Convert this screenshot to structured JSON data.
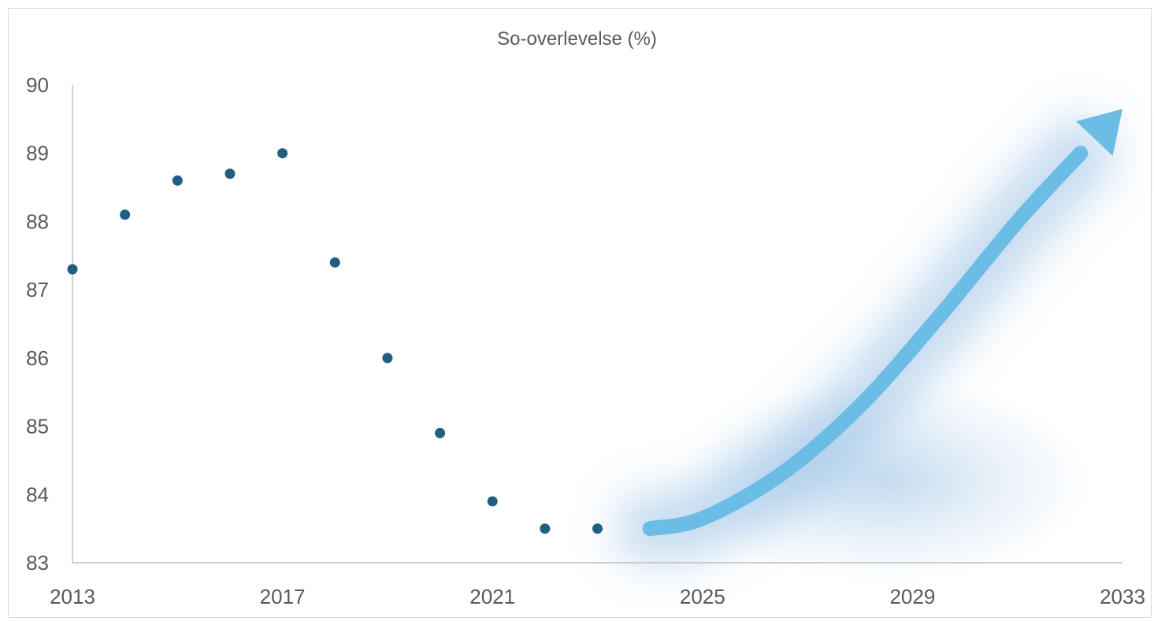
{
  "chart_data": {
    "type": "scatter",
    "title": "So-overlevelse (%)",
    "xlabel": "",
    "ylabel": "",
    "xlim": [
      2013,
      2033
    ],
    "ylim": [
      83,
      90
    ],
    "x_ticks": [
      "2013",
      "2017",
      "2021",
      "2025",
      "2029",
      "2033"
    ],
    "y_ticks": [
      "83",
      "84",
      "85",
      "86",
      "87",
      "88",
      "89",
      "90"
    ],
    "grid": false,
    "legend": "none",
    "series": [
      {
        "color": "#1f5f82",
        "points": [
          {
            "x": 2013,
            "y": 87.3
          },
          {
            "x": 2014,
            "y": 88.1
          },
          {
            "x": 2015,
            "y": 88.6
          },
          {
            "x": 2016,
            "y": 88.7
          },
          {
            "x": 2017,
            "y": 89.0
          },
          {
            "x": 2018,
            "y": 87.4
          },
          {
            "x": 2019,
            "y": 86.0
          },
          {
            "x": 2020,
            "y": 84.9
          },
          {
            "x": 2021,
            "y": 83.9
          },
          {
            "x": 2022,
            "y": 83.5
          },
          {
            "x": 2023,
            "y": 83.5
          }
        ]
      }
    ],
    "trend_arrow": {
      "color": "#6cbde6",
      "glow_color": "#5b9bd5",
      "points": [
        {
          "x": 2024.0,
          "y": 83.5
        },
        {
          "x": 2025.0,
          "y": 83.65
        },
        {
          "x": 2026.5,
          "y": 84.3
        },
        {
          "x": 2028.0,
          "y": 85.3
        },
        {
          "x": 2029.5,
          "y": 86.6
        },
        {
          "x": 2031.0,
          "y": 88.0
        },
        {
          "x": 2032.2,
          "y": 89.0
        }
      ],
      "head": {
        "x": 2033,
        "y": 89.65
      }
    }
  }
}
